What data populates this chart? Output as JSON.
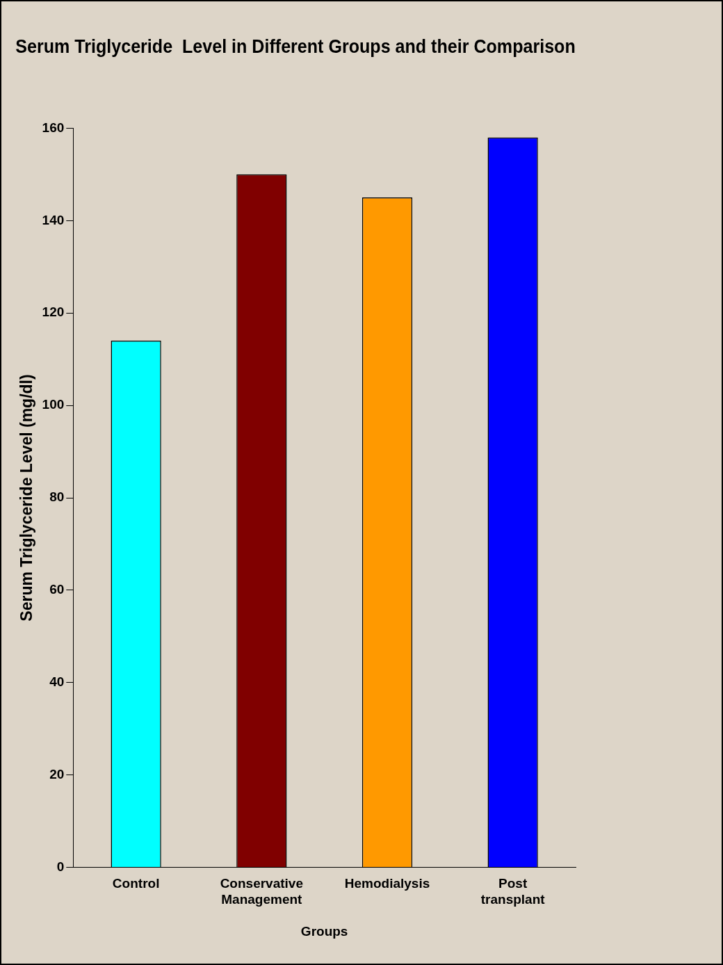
{
  "chart_data": {
    "type": "bar",
    "title": "Serum Triglyceride  Level in Different Groups and their Comparison",
    "xlabel": "Groups",
    "ylabel": "Serum Triglyceride Level (mg/dl)",
    "categories": [
      "Control",
      "Conservative Management",
      "Hemodialysis",
      "Post transplant"
    ],
    "values": [
      114,
      150,
      145,
      158
    ],
    "colors": [
      "#00ffff",
      "#800000",
      "#ff9900",
      "#0000ff"
    ],
    "ylim": [
      0,
      160
    ],
    "yticks": [
      0,
      20,
      40,
      60,
      80,
      100,
      120,
      140,
      160
    ],
    "grid": false,
    "legend": false
  }
}
